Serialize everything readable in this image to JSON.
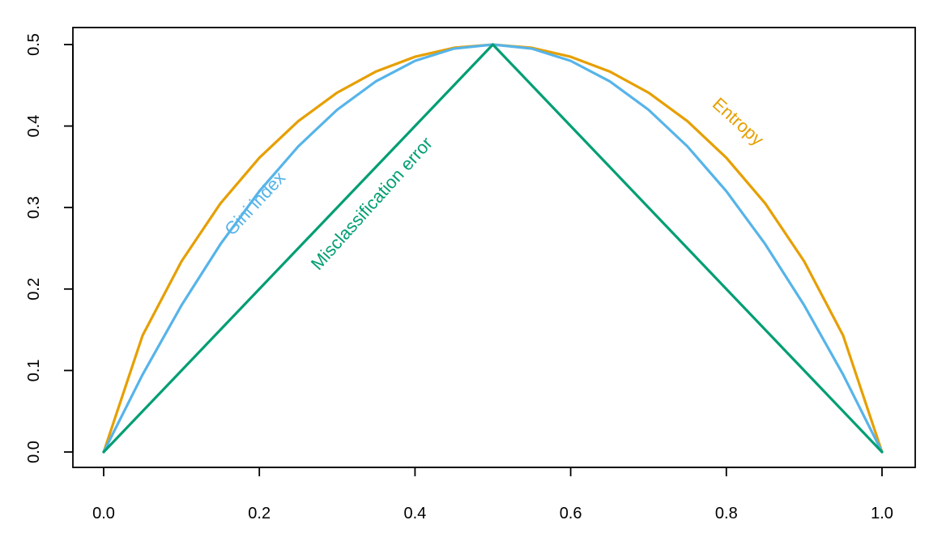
{
  "chart_data": {
    "type": "line",
    "title": "",
    "xlabel": "",
    "ylabel": "",
    "xlim": [
      0.0,
      1.0
    ],
    "ylim": [
      0.0,
      0.5
    ],
    "x_ticks": [
      "0.0",
      "0.2",
      "0.4",
      "0.6",
      "0.8",
      "1.0"
    ],
    "y_ticks": [
      "0.0",
      "0.1",
      "0.2",
      "0.3",
      "0.4",
      "0.5"
    ],
    "grid": false,
    "series": [
      {
        "name": "Entropy",
        "color": "#E69F00",
        "x": [
          0.0,
          0.05,
          0.1,
          0.15,
          0.2,
          0.25,
          0.3,
          0.35,
          0.4,
          0.45,
          0.5,
          0.55,
          0.6,
          0.65,
          0.7,
          0.75,
          0.8,
          0.85,
          0.9,
          0.95,
          1.0
        ],
        "values": [
          0.0,
          0.143,
          0.234,
          0.305,
          0.361,
          0.406,
          0.441,
          0.467,
          0.485,
          0.496,
          0.5,
          0.496,
          0.485,
          0.467,
          0.441,
          0.406,
          0.361,
          0.305,
          0.234,
          0.143,
          0.0
        ]
      },
      {
        "name": "Gini index",
        "color": "#56B4E9",
        "x": [
          0.0,
          0.05,
          0.1,
          0.15,
          0.2,
          0.25,
          0.3,
          0.35,
          0.4,
          0.45,
          0.5,
          0.55,
          0.6,
          0.65,
          0.7,
          0.75,
          0.8,
          0.85,
          0.9,
          0.95,
          1.0
        ],
        "values": [
          0.0,
          0.095,
          0.18,
          0.255,
          0.32,
          0.375,
          0.42,
          0.455,
          0.48,
          0.495,
          0.5,
          0.495,
          0.48,
          0.455,
          0.42,
          0.375,
          0.32,
          0.255,
          0.18,
          0.095,
          0.0
        ]
      },
      {
        "name": "Misclassification error",
        "color": "#009E73",
        "x": [
          0.0,
          0.5,
          1.0
        ],
        "values": [
          0.0,
          0.5,
          0.0
        ]
      }
    ],
    "annotations": [
      {
        "text": "Gini index",
        "x": 0.2,
        "y": 0.3,
        "angle": -47,
        "color": "#56B4E9"
      },
      {
        "text": "Misclassification error",
        "x": 0.35,
        "y": 0.3,
        "angle": -48,
        "color": "#009E73"
      },
      {
        "text": "Entropy",
        "x": 0.81,
        "y": 0.4,
        "angle": 42,
        "color": "#E69F00"
      }
    ]
  }
}
